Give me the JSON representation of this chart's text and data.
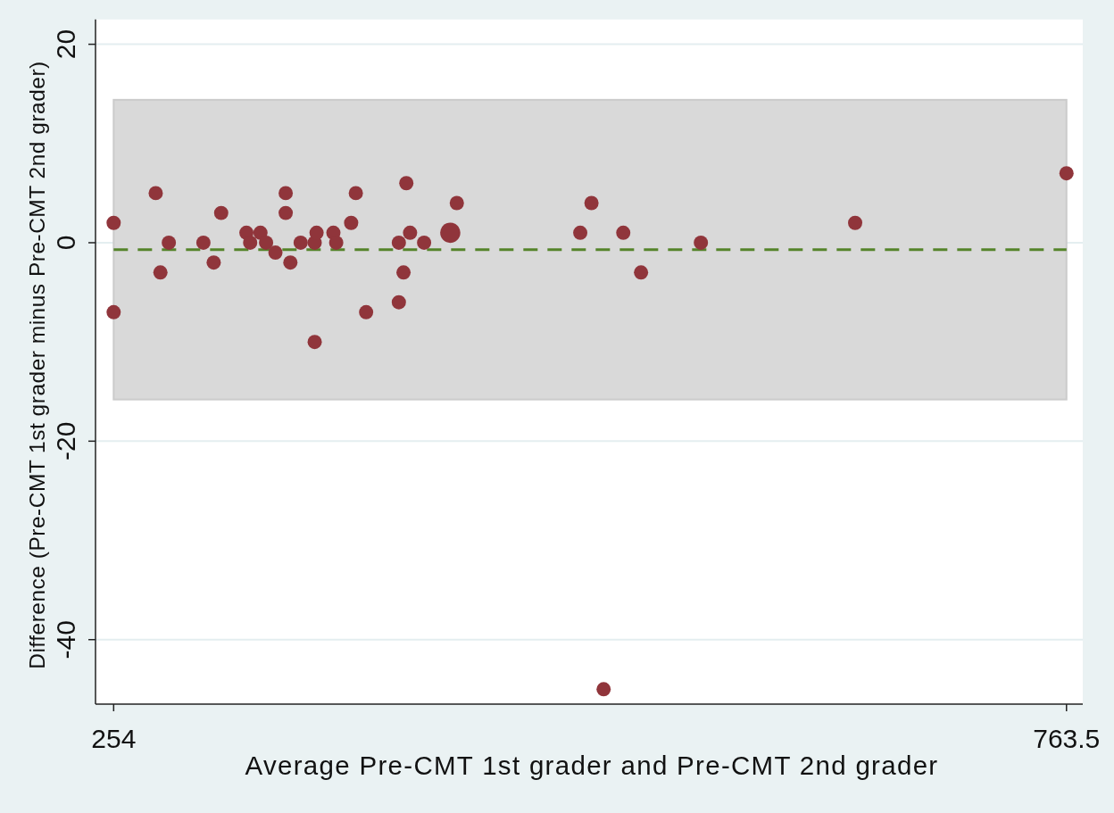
{
  "chart_data": {
    "type": "bubble",
    "xlabel": "Average Pre-CMT 1st grader and Pre-CMT 2nd grader",
    "ylabel": "Difference (Pre-CMT 1st grader minus Pre-CMT 2nd grader)",
    "x": [
      254,
      254,
      276.5,
      279,
      283.5,
      302,
      307.5,
      311.5,
      325,
      327,
      332.5,
      335.5,
      340.5,
      346,
      346,
      348.5,
      354,
      361.5,
      361.5,
      362.5,
      371.5,
      373,
      381,
      383.5,
      389,
      406.5,
      406.5,
      409,
      410.5,
      412.5,
      420,
      434,
      437.5,
      503.5,
      509.5,
      516,
      526.5,
      536,
      568,
      650.5,
      763.5
    ],
    "values": [
      2,
      -7,
      5,
      -3,
      0,
      0,
      -2,
      3,
      1,
      0,
      1,
      0,
      -1,
      5,
      3,
      -2,
      0,
      -10,
      0,
      1,
      1,
      0,
      2,
      5,
      -7,
      -6,
      0,
      -3,
      6,
      1,
      0,
      1,
      4,
      1,
      4,
      -45,
      1,
      -3,
      0,
      2,
      7
    ],
    "sizes": [
      0.5,
      0.5,
      0.5,
      0.5,
      0.5,
      0.5,
      0.5,
      0.5,
      0.5,
      0.5,
      0.5,
      0.5,
      0.5,
      0.5,
      0.5,
      0.5,
      0.5,
      0.5,
      0.5,
      0.5,
      0.5,
      0.5,
      0.5,
      0.5,
      0.5,
      0.5,
      0.5,
      0.5,
      0.5,
      0.5,
      0.5,
      1,
      0.5,
      0.5,
      0.5,
      0.5,
      0.5,
      0.5,
      0.5,
      0.5,
      0.5
    ],
    "color": "#90353b",
    "xlim": [
      244.3,
      772.2
    ],
    "xticks": [
      254,
      763.5
    ],
    "ylim": [
      -46.5,
      22.5
    ],
    "yticks": [
      -40,
      -20,
      0,
      20
    ],
    "grid": "y",
    "bands": [
      {
        "axis": "y",
        "from": -15.8,
        "to": 14.4,
        "color": "#d9d9d9"
      }
    ],
    "ref_lines": [
      {
        "axis": "y",
        "value": -0.7,
        "color": "#55842b",
        "line_style": "dashed"
      }
    ]
  }
}
